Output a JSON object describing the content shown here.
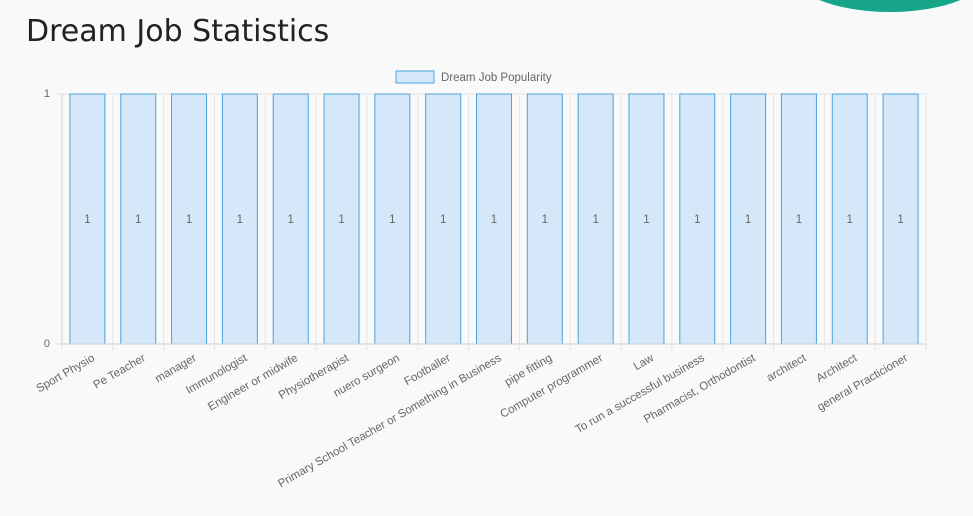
{
  "page": {
    "title": "Dream Job Statistics"
  },
  "colors": {
    "accent": "#17a589",
    "bar_fill": "#d4e8f9",
    "bar_border": "#4aa3df",
    "grid": "#e4e4e4",
    "axis": "#cfcfcf"
  },
  "chart_data": {
    "type": "bar",
    "title": "",
    "legend": {
      "label": "Dream Job Popularity",
      "position": "top-center"
    },
    "categories": [
      "Sport Physio",
      "Pe Teacher",
      "manager",
      "Immunologist",
      "Engineer or midwife",
      "Physiotherapist",
      "nuero surgeon",
      "Footballer",
      "Primary School Teacher or Something in Business",
      "pipe fitting",
      "Computer programmer",
      "Law",
      "To run a successful business",
      "Pharmacist, Orthodontist",
      "architect",
      "Architect",
      "general Practicioner"
    ],
    "series": [
      {
        "name": "Dream Job Popularity",
        "values": [
          1,
          1,
          1,
          1,
          1,
          1,
          1,
          1,
          1,
          1,
          1,
          1,
          1,
          1,
          1,
          1,
          1
        ]
      }
    ],
    "y_ticks": [
      "1",
      "0"
    ],
    "ylim": [
      0,
      1
    ],
    "xlabel": "",
    "ylabel": "",
    "grid": true,
    "data_labels": true
  }
}
